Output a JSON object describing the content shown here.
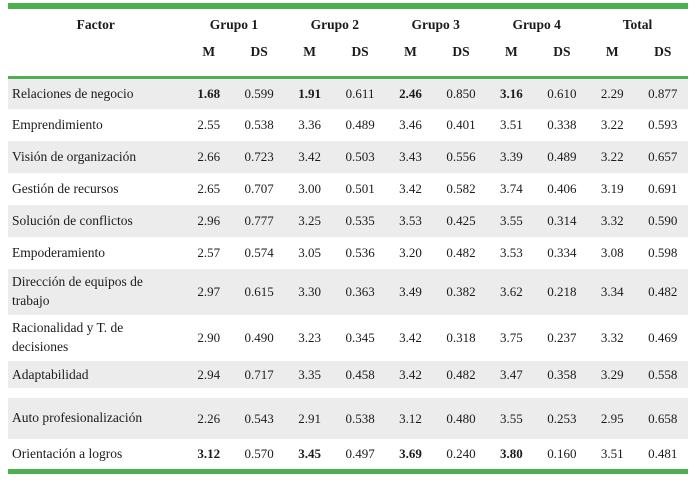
{
  "colors": {
    "accent_green": "#4caf50",
    "row_stripe": "#ececec",
    "text": "#1b1b1b"
  },
  "chart_data": {
    "type": "table",
    "column_groups": [
      "Factor",
      "Grupo 1",
      "Grupo 2",
      "Grupo 3",
      "Grupo 4",
      "Total"
    ],
    "sub_columns": [
      "M",
      "DS"
    ],
    "rows": [
      {
        "factor": "Relaciones de negocio",
        "shaded": true,
        "two_line": false,
        "gap_below": false,
        "bold_cols": [
          0,
          2,
          4,
          6
        ],
        "values": [
          "1.68",
          "0.599",
          "1.91",
          "0.611",
          "2.46",
          "0.850",
          "3.16",
          "0.610",
          "2.29",
          "0.877"
        ]
      },
      {
        "factor": "Emprendimiento",
        "shaded": false,
        "two_line": false,
        "gap_below": false,
        "bold_cols": [],
        "values": [
          "2.55",
          "0.538",
          "3.36",
          "0.489",
          "3.46",
          "0.401",
          "3.51",
          "0.338",
          "3.22",
          "0.593"
        ]
      },
      {
        "factor": "Visión de organización",
        "shaded": true,
        "two_line": false,
        "gap_below": false,
        "bold_cols": [],
        "values": [
          "2.66",
          "0.723",
          "3.42",
          "0.503",
          "3.43",
          "0.556",
          "3.39",
          "0.489",
          "3.22",
          "0.657"
        ]
      },
      {
        "factor": "Gestión de recursos",
        "shaded": false,
        "two_line": false,
        "gap_below": false,
        "bold_cols": [],
        "values": [
          "2.65",
          "0.707",
          "3.00",
          "0.501",
          "3.42",
          "0.582",
          "3.74",
          "0.406",
          "3.19",
          "0.691"
        ]
      },
      {
        "factor": "Solución de conflictos",
        "shaded": true,
        "two_line": false,
        "gap_below": false,
        "bold_cols": [],
        "values": [
          "2.96",
          "0.777",
          "3.25",
          "0.535",
          "3.53",
          "0.425",
          "3.55",
          "0.314",
          "3.32",
          "0.590"
        ]
      },
      {
        "factor": "Empoderamiento",
        "shaded": false,
        "two_line": false,
        "gap_below": false,
        "bold_cols": [],
        "values": [
          "2.57",
          "0.574",
          "3.05",
          "0.536",
          "3.20",
          "0.482",
          "3.53",
          "0.334",
          "3.08",
          "0.598"
        ]
      },
      {
        "factor": "Dirección de equipos de trabajo",
        "shaded": true,
        "two_line": true,
        "gap_below": false,
        "bold_cols": [],
        "values": [
          "2.97",
          "0.615",
          "3.30",
          "0.363",
          "3.49",
          "0.382",
          "3.62",
          "0.218",
          "3.34",
          "0.482"
        ]
      },
      {
        "factor": "Racionalidad y T. de decisiones",
        "shaded": false,
        "two_line": true,
        "gap_below": false,
        "bold_cols": [],
        "values": [
          "2.90",
          "0.490",
          "3.23",
          "0.345",
          "3.42",
          "0.318",
          "3.75",
          "0.237",
          "3.32",
          "0.469"
        ]
      },
      {
        "factor": "Adaptabilidad",
        "shaded": true,
        "two_line": false,
        "gap_below": true,
        "bold_cols": [],
        "values": [
          "2.94",
          "0.717",
          "3.35",
          "0.458",
          "3.42",
          "0.482",
          "3.47",
          "0.358",
          "3.29",
          "0.558"
        ]
      },
      {
        "factor": "Auto profesionalización",
        "shaded": true,
        "two_line": true,
        "gap_below": false,
        "bold_cols": [],
        "values": [
          "2.26",
          "0.543",
          "2.91",
          "0.538",
          "3.12",
          "0.480",
          "3.55",
          "0.253",
          "2.95",
          "0.658"
        ]
      },
      {
        "factor": "Orientación a logros",
        "shaded": false,
        "two_line": false,
        "gap_below": false,
        "bold_cols": [
          0,
          2,
          4,
          6
        ],
        "values": [
          "3.12",
          "0.570",
          "3.45",
          "0.497",
          "3.69",
          "0.240",
          "3.80",
          "0.160",
          "3.51",
          "0.481"
        ]
      }
    ]
  }
}
